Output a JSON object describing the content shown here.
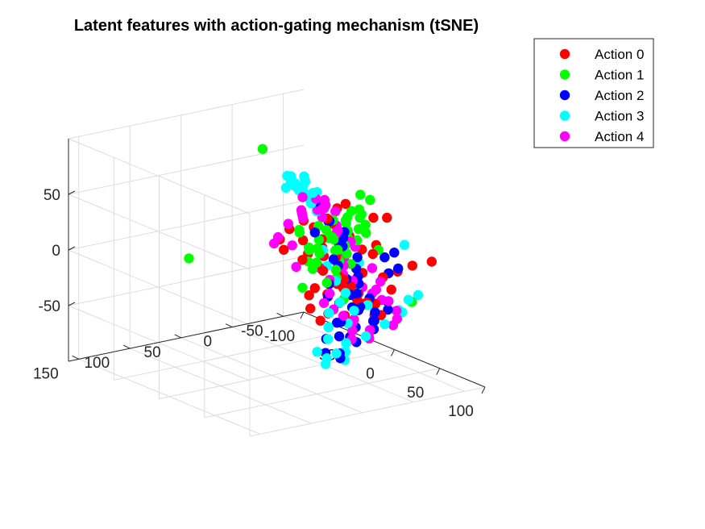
{
  "chart_data": {
    "type": "scatter",
    "title": "Latent features with action-gating mechanism (tSNE)",
    "xlabel": "",
    "ylabel": "",
    "zlabel": "",
    "grid": true,
    "legend_position": "top-right outside",
    "x_axis": {
      "ticks": [
        -100,
        -50,
        0,
        50,
        100
      ],
      "tick_labels": [
        "-100",
        "-50",
        "0",
        "50",
        "100"
      ]
    },
    "y_axis": {
      "ticks": [
        -50,
        0,
        50,
        100,
        150
      ],
      "tick_labels": [
        "-50",
        "0",
        "50",
        "100",
        "150"
      ]
    },
    "z_axis": {
      "ticks": [
        -50,
        0,
        50
      ],
      "tick_labels": [
        "-50",
        "0",
        "50"
      ]
    },
    "legend": [
      {
        "label": "Action 0",
        "color": "#ff0000"
      },
      {
        "label": "Action 1",
        "color": "#00ff00"
      },
      {
        "label": "Action 2",
        "color": "#0000ff"
      },
      {
        "label": "Action 3",
        "color": "#00ffff"
      },
      {
        "label": "Action 4",
        "color": "#ff00ff"
      }
    ],
    "series": [
      {
        "name": "Action 0",
        "color": "#ff0000",
        "points": [
          [
            -8,
            -20,
            -10
          ],
          [
            -5,
            -25,
            -30
          ],
          [
            -12,
            -5,
            -15
          ],
          [
            10,
            -30,
            -20
          ],
          [
            15,
            -20,
            -40
          ],
          [
            20,
            -10,
            -25
          ],
          [
            -2,
            -40,
            -5
          ],
          [
            -25,
            -10,
            -60
          ],
          [
            5,
            0,
            -35
          ],
          [
            25,
            -5,
            -55
          ],
          [
            30,
            5,
            -45
          ],
          [
            -30,
            -35,
            10
          ],
          [
            -35,
            -30,
            -5
          ],
          [
            -40,
            -35,
            -15
          ],
          [
            -45,
            -20,
            -25
          ],
          [
            -50,
            -25,
            -10
          ],
          [
            -55,
            -30,
            5
          ],
          [
            -60,
            -15,
            -20
          ],
          [
            -20,
            -40,
            30
          ],
          [
            -35,
            -45,
            20
          ],
          [
            -65,
            -25,
            -5
          ],
          [
            20,
            20,
            -50
          ],
          [
            35,
            15,
            -30
          ],
          [
            45,
            5,
            -20
          ],
          [
            55,
            -10,
            -5
          ],
          [
            60,
            -20,
            0
          ],
          [
            65,
            -30,
            5
          ],
          [
            70,
            -5,
            -10
          ],
          [
            50,
            20,
            -15
          ],
          [
            40,
            30,
            -35
          ],
          [
            30,
            40,
            -20
          ],
          [
            35,
            30,
            15
          ],
          [
            45,
            25,
            0
          ],
          [
            50,
            30,
            -5
          ],
          [
            75,
            -40,
            10
          ],
          [
            10,
            -40,
            -5
          ],
          [
            -10,
            0,
            20
          ],
          [
            -5,
            10,
            0
          ],
          [
            15,
            -30,
            -45
          ],
          [
            0,
            -20,
            -35
          ],
          [
            -20,
            -10,
            -40
          ],
          [
            -28,
            -25,
            -30
          ],
          [
            5,
            -45,
            25
          ],
          [
            25,
            -30,
            10
          ],
          [
            40,
            -15,
            -45
          ],
          [
            30,
            -25,
            -40
          ],
          [
            55,
            10,
            -25
          ],
          [
            62,
            -2,
            -35
          ],
          [
            -70,
            -20,
            -15
          ],
          [
            -40,
            -40,
            10
          ],
          [
            20,
            -45,
            30
          ],
          [
            18,
            -10,
            20
          ]
        ]
      },
      {
        "name": "Action 1",
        "color": "#00ff00",
        "points": [
          [
            -15,
            -50,
            38
          ],
          [
            -20,
            -40,
            15
          ],
          [
            -25,
            -45,
            10
          ],
          [
            -30,
            -30,
            5
          ],
          [
            -35,
            -40,
            -5
          ],
          [
            -40,
            -30,
            -15
          ],
          [
            -45,
            -45,
            -10
          ],
          [
            -50,
            -40,
            0
          ],
          [
            -55,
            -35,
            -20
          ],
          [
            -60,
            -40,
            -25
          ],
          [
            -45,
            -50,
            5
          ],
          [
            -35,
            -55,
            10
          ],
          [
            -25,
            -50,
            20
          ],
          [
            -20,
            -30,
            -10
          ],
          [
            -15,
            -35,
            -5
          ],
          [
            -50,
            -30,
            -30
          ],
          [
            -65,
            -35,
            -10
          ],
          [
            -30,
            -50,
            -20
          ],
          [
            -40,
            -50,
            -20
          ],
          [
            -20,
            -60,
            0
          ],
          [
            -10,
            -45,
            20
          ],
          [
            -5,
            -40,
            30
          ],
          [
            -35,
            -25,
            -25
          ],
          [
            -25,
            -35,
            -30
          ],
          [
            -45,
            -30,
            -35
          ],
          [
            -55,
            -45,
            -15
          ],
          [
            -60,
            -30,
            -5
          ],
          [
            -30,
            -60,
            -10
          ],
          [
            -40,
            -60,
            -5
          ],
          [
            -50,
            -55,
            -15
          ],
          [
            -15,
            -55,
            10
          ],
          [
            -20,
            -45,
            -25
          ],
          [
            -30,
            -40,
            -40
          ],
          [
            -5,
            -30,
            5
          ],
          [
            0,
            -35,
            15
          ],
          [
            -10,
            -25,
            -15
          ],
          [
            5,
            -50,
            -5
          ],
          [
            40,
            15,
            -25
          ],
          [
            70,
            -25,
            -25
          ],
          [
            -80,
            60,
            -20
          ],
          [
            -10,
            50,
            100
          ],
          [
            -2,
            -48,
            38
          ],
          [
            -45,
            -20,
            -50
          ],
          [
            -60,
            -50,
            -30
          ],
          [
            -25,
            -60,
            15
          ],
          [
            -35,
            -35,
            -45
          ]
        ]
      },
      {
        "name": "Action 2",
        "color": "#0000ff",
        "points": [
          [
            0,
            -20,
            10
          ],
          [
            5,
            -15,
            5
          ],
          [
            10,
            -25,
            -5
          ],
          [
            -5,
            -15,
            -10
          ],
          [
            -10,
            -25,
            0
          ],
          [
            15,
            -10,
            -20
          ],
          [
            20,
            -15,
            -10
          ],
          [
            -15,
            -20,
            20
          ],
          [
            -20,
            -10,
            10
          ],
          [
            25,
            -5,
            -30
          ],
          [
            30,
            -10,
            -40
          ],
          [
            35,
            -20,
            -45
          ],
          [
            40,
            -15,
            -50
          ],
          [
            45,
            -10,
            -55
          ],
          [
            50,
            -5,
            -45
          ],
          [
            55,
            -15,
            -35
          ],
          [
            20,
            0,
            -55
          ],
          [
            25,
            -10,
            -60
          ],
          [
            30,
            0,
            -65
          ],
          [
            15,
            10,
            -70
          ],
          [
            20,
            15,
            -80
          ],
          [
            25,
            5,
            -85
          ],
          [
            30,
            10,
            -78
          ],
          [
            10,
            -5,
            -60
          ],
          [
            15,
            -20,
            -35
          ],
          [
            5,
            -30,
            -25
          ],
          [
            0,
            -5,
            -40
          ],
          [
            -10,
            -30,
            10
          ],
          [
            -5,
            -10,
            25
          ],
          [
            -25,
            -15,
            35
          ],
          [
            40,
            -25,
            5
          ],
          [
            45,
            -30,
            10
          ],
          [
            50,
            -20,
            -5
          ],
          [
            55,
            -25,
            0
          ],
          [
            60,
            -10,
            -25
          ],
          [
            45,
            5,
            -35
          ],
          [
            35,
            15,
            -60
          ],
          [
            -8,
            -22,
            -18
          ],
          [
            12,
            -18,
            -48
          ],
          [
            28,
            -8,
            -72
          ],
          [
            38,
            -12,
            -30
          ],
          [
            8,
            -28,
            -30
          ],
          [
            -2,
            -8,
            -30
          ]
        ]
      },
      {
        "name": "Action 3",
        "color": "#00ffff",
        "points": [
          [
            -25,
            -5,
            55
          ],
          [
            -20,
            0,
            60
          ],
          [
            -15,
            5,
            65
          ],
          [
            -10,
            10,
            60
          ],
          [
            -5,
            15,
            58
          ],
          [
            0,
            15,
            55
          ],
          [
            5,
            20,
            58
          ],
          [
            -30,
            0,
            50
          ],
          [
            10,
            20,
            52
          ],
          [
            15,
            25,
            55
          ],
          [
            -35,
            5,
            48
          ],
          [
            -28,
            10,
            62
          ],
          [
            -18,
            15,
            66
          ],
          [
            -8,
            20,
            64
          ],
          [
            2,
            25,
            62
          ],
          [
            12,
            28,
            60
          ],
          [
            -12,
            -5,
            50
          ],
          [
            -22,
            -10,
            45
          ],
          [
            20,
            -5,
            -75
          ],
          [
            25,
            0,
            -80
          ],
          [
            30,
            5,
            -85
          ],
          [
            15,
            0,
            -85
          ],
          [
            10,
            5,
            -90
          ],
          [
            35,
            10,
            -75
          ],
          [
            20,
            15,
            -90
          ],
          [
            5,
            10,
            -85
          ],
          [
            0,
            -5,
            -78
          ],
          [
            -5,
            -10,
            -70
          ],
          [
            40,
            -25,
            -55
          ],
          [
            50,
            -30,
            -40
          ],
          [
            55,
            -35,
            -30
          ],
          [
            60,
            -40,
            -25
          ],
          [
            65,
            -20,
            -35
          ],
          [
            50,
            10,
            -10
          ],
          [
            40,
            0,
            5
          ],
          [
            45,
            -40,
            15
          ],
          [
            -15,
            -30,
            -55
          ],
          [
            -5,
            -35,
            -60
          ],
          [
            -25,
            -35,
            -40
          ],
          [
            -35,
            -35,
            -30
          ],
          [
            -45,
            -40,
            -20
          ],
          [
            10,
            -35,
            -50
          ],
          [
            -20,
            -40,
            -50
          ],
          [
            25,
            -20,
            -70
          ],
          [
            5,
            -20,
            -65
          ],
          [
            -10,
            -15,
            -60
          ],
          [
            -22,
            12,
            58
          ],
          [
            18,
            22,
            48
          ]
        ]
      },
      {
        "name": "Action 4",
        "color": "#ff00ff",
        "points": [
          [
            -35,
            -10,
            25
          ],
          [
            -40,
            -15,
            20
          ],
          [
            -45,
            -20,
            15
          ],
          [
            -50,
            -25,
            10
          ],
          [
            -55,
            -15,
            5
          ],
          [
            -30,
            -20,
            35
          ],
          [
            -25,
            -25,
            30
          ],
          [
            -20,
            -30,
            25
          ],
          [
            -15,
            -15,
            40
          ],
          [
            -10,
            -10,
            35
          ],
          [
            5,
            -10,
            20
          ],
          [
            10,
            -5,
            25
          ],
          [
            15,
            0,
            30
          ],
          [
            20,
            5,
            25
          ],
          [
            25,
            0,
            20
          ],
          [
            30,
            -5,
            15
          ],
          [
            35,
            10,
            10
          ],
          [
            40,
            15,
            5
          ],
          [
            45,
            20,
            0
          ],
          [
            50,
            15,
            -5
          ],
          [
            55,
            10,
            -10
          ],
          [
            60,
            5,
            -15
          ],
          [
            65,
            0,
            -20
          ],
          [
            20,
            20,
            10
          ],
          [
            25,
            25,
            0
          ],
          [
            30,
            20,
            -10
          ],
          [
            10,
            -20,
            -70
          ],
          [
            15,
            -15,
            -75
          ],
          [
            5,
            -25,
            -65
          ],
          [
            0,
            -20,
            -60
          ],
          [
            -5,
            -15,
            -55
          ],
          [
            -10,
            -10,
            -50
          ],
          [
            -15,
            -20,
            -45
          ],
          [
            35,
            -15,
            -60
          ],
          [
            40,
            -10,
            -65
          ],
          [
            45,
            -5,
            -60
          ],
          [
            0,
            5,
            40
          ],
          [
            -5,
            0,
            45
          ],
          [
            5,
            5,
            35
          ],
          [
            -35,
            -5,
            -25
          ],
          [
            -45,
            -10,
            -10
          ],
          [
            -55,
            -5,
            -5
          ],
          [
            -65,
            -10,
            -15
          ],
          [
            55,
            -20,
            -50
          ],
          [
            65,
            -15,
            -40
          ],
          [
            70,
            -10,
            -30
          ],
          [
            25,
            -30,
            -30
          ],
          [
            15,
            -35,
            -15
          ],
          [
            -20,
            -45,
            -5
          ],
          [
            40,
            5,
            -45
          ],
          [
            50,
            -20,
            -30
          ],
          [
            10,
            10,
            45
          ],
          [
            -28,
            -5,
            40
          ],
          [
            32,
            -28,
            -20
          ]
        ]
      }
    ]
  }
}
